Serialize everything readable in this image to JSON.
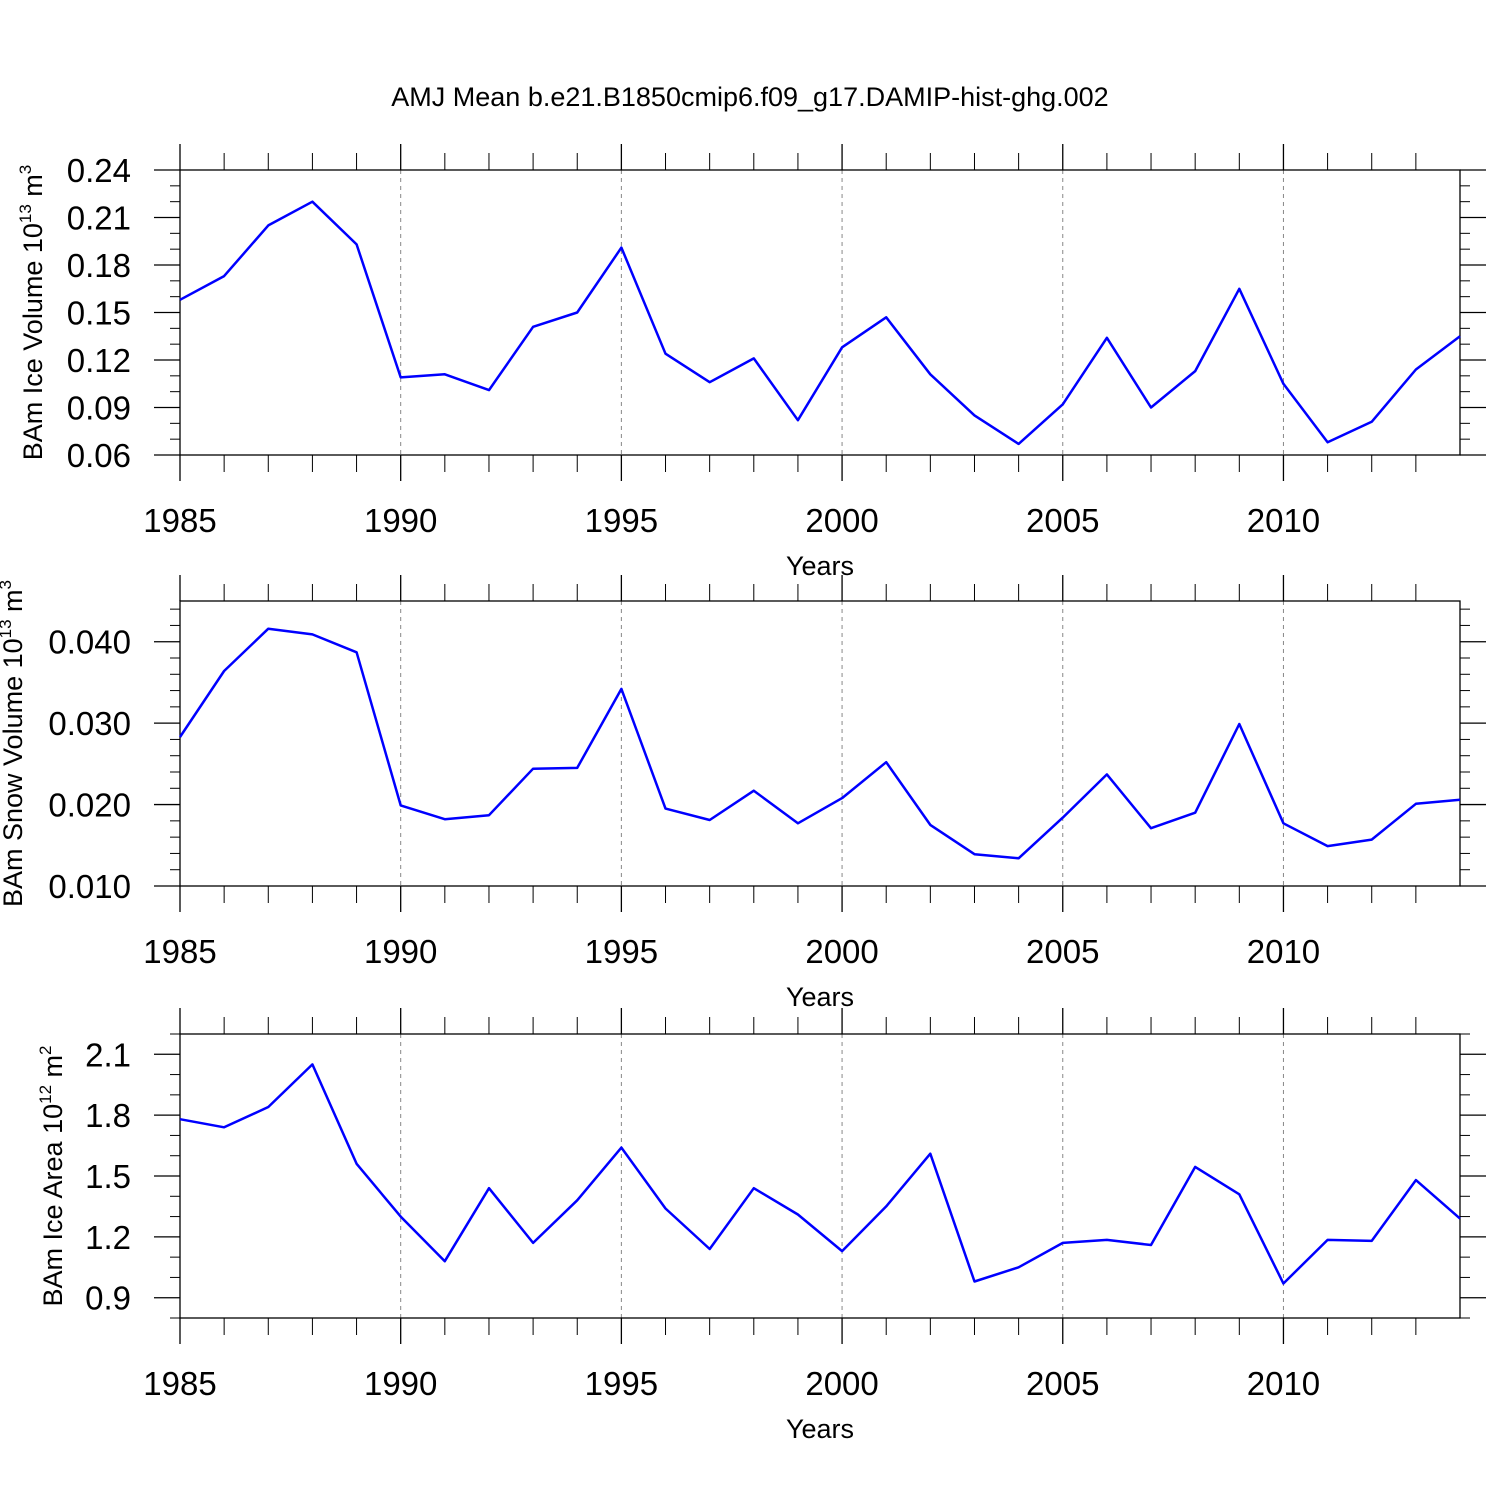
{
  "figure": {
    "title": "AMJ Mean b.e21.B1850cmip6.f09_g17.DAMIP-hist-ghg.002",
    "line_color": "#0000ff"
  },
  "chart_data": [
    {
      "type": "line",
      "ylabel_main": "BAm Ice Volume 10",
      "ylabel_exp": "13",
      "ylabel_unit": "m",
      "ylabel_unit_exp": "3",
      "xlabel": "Years",
      "xlim": [
        1985,
        2014
      ],
      "ylim": [
        0.06,
        0.24
      ],
      "yticks": [
        0.06,
        0.09,
        0.12,
        0.15,
        0.18,
        0.21,
        0.24
      ],
      "ytick_labels": [
        "0.06",
        "0.09",
        "0.12",
        "0.15",
        "0.18",
        "0.21",
        "0.24"
      ],
      "yminor_step": 0.01,
      "xticks": [
        1985,
        1990,
        1995,
        2000,
        2005,
        2010
      ],
      "xtick_labels": [
        "1985",
        "1990",
        "1995",
        "2000",
        "2005",
        "2010"
      ],
      "x": [
        1985,
        1986,
        1987,
        1988,
        1989,
        1990,
        1991,
        1992,
        1993,
        1994,
        1995,
        1996,
        1997,
        1998,
        1999,
        2000,
        2001,
        2002,
        2003,
        2004,
        2005,
        2006,
        2007,
        2008,
        2009,
        2010,
        2011,
        2012,
        2013,
        2014
      ],
      "y": [
        0.158,
        0.173,
        0.205,
        0.22,
        0.193,
        0.109,
        0.111,
        0.101,
        0.141,
        0.15,
        0.191,
        0.124,
        0.106,
        0.121,
        0.082,
        0.128,
        0.147,
        0.111,
        0.085,
        0.067,
        0.092,
        0.134,
        0.09,
        0.113,
        0.165,
        0.105,
        0.068,
        0.081,
        0.114,
        0.135
      ]
    },
    {
      "type": "line",
      "ylabel_main": "BAm Snow Volume 10",
      "ylabel_exp": "13",
      "ylabel_unit": "m",
      "ylabel_unit_exp": "3",
      "xlabel": "Years",
      "xlim": [
        1985,
        2014
      ],
      "ylim": [
        0.01,
        0.045
      ],
      "yticks": [
        0.01,
        0.02,
        0.03,
        0.04
      ],
      "ytick_labels": [
        "0.010",
        "0.020",
        "0.030",
        "0.040"
      ],
      "yminor_step": 0.002,
      "xticks": [
        1985,
        1990,
        1995,
        2000,
        2005,
        2010
      ],
      "xtick_labels": [
        "1985",
        "1990",
        "1995",
        "2000",
        "2005",
        "2010"
      ],
      "x": [
        1985,
        1986,
        1987,
        1988,
        1989,
        1990,
        1991,
        1992,
        1993,
        1994,
        1995,
        1996,
        1997,
        1998,
        1999,
        2000,
        2001,
        2002,
        2003,
        2004,
        2005,
        2006,
        2007,
        2008,
        2009,
        2010,
        2011,
        2012,
        2013,
        2014
      ],
      "y": [
        0.0283,
        0.0364,
        0.0416,
        0.0409,
        0.0387,
        0.0199,
        0.0182,
        0.0187,
        0.0244,
        0.0245,
        0.0342,
        0.0195,
        0.0181,
        0.0217,
        0.0177,
        0.0208,
        0.0252,
        0.0175,
        0.0139,
        0.0134,
        0.0184,
        0.0237,
        0.0171,
        0.019,
        0.0299,
        0.0177,
        0.0149,
        0.0157,
        0.0201,
        0.0206
      ]
    },
    {
      "type": "line",
      "ylabel_main": "BAm Ice Area 10",
      "ylabel_exp": "12",
      "ylabel_unit": "m",
      "ylabel_unit_exp": "2",
      "xlabel": "Years",
      "xlim": [
        1985,
        2014
      ],
      "ylim": [
        0.8,
        2.2
      ],
      "yticks": [
        0.9,
        1.2,
        1.5,
        1.8,
        2.1
      ],
      "ytick_labels": [
        "0.9",
        "1.2",
        "1.5",
        "1.8",
        "2.1"
      ],
      "yminor_step": 0.1,
      "xticks": [
        1985,
        1990,
        1995,
        2000,
        2005,
        2010
      ],
      "xtick_labels": [
        "1985",
        "1990",
        "1995",
        "2000",
        "2005",
        "2010"
      ],
      "x": [
        1985,
        1986,
        1987,
        1988,
        1989,
        1990,
        1991,
        1992,
        1993,
        1994,
        1995,
        1996,
        1997,
        1998,
        1999,
        2000,
        2001,
        2002,
        2003,
        2004,
        2005,
        2006,
        2007,
        2008,
        2009,
        2010,
        2011,
        2012,
        2013,
        2014
      ],
      "y": [
        1.78,
        1.74,
        1.84,
        2.05,
        1.56,
        1.3,
        1.08,
        1.44,
        1.17,
        1.38,
        1.64,
        1.34,
        1.14,
        1.44,
        1.31,
        1.13,
        1.35,
        1.61,
        0.98,
        1.05,
        1.17,
        1.185,
        1.16,
        1.545,
        1.41,
        0.97,
        1.185,
        1.18,
        1.48,
        1.29
      ]
    }
  ]
}
